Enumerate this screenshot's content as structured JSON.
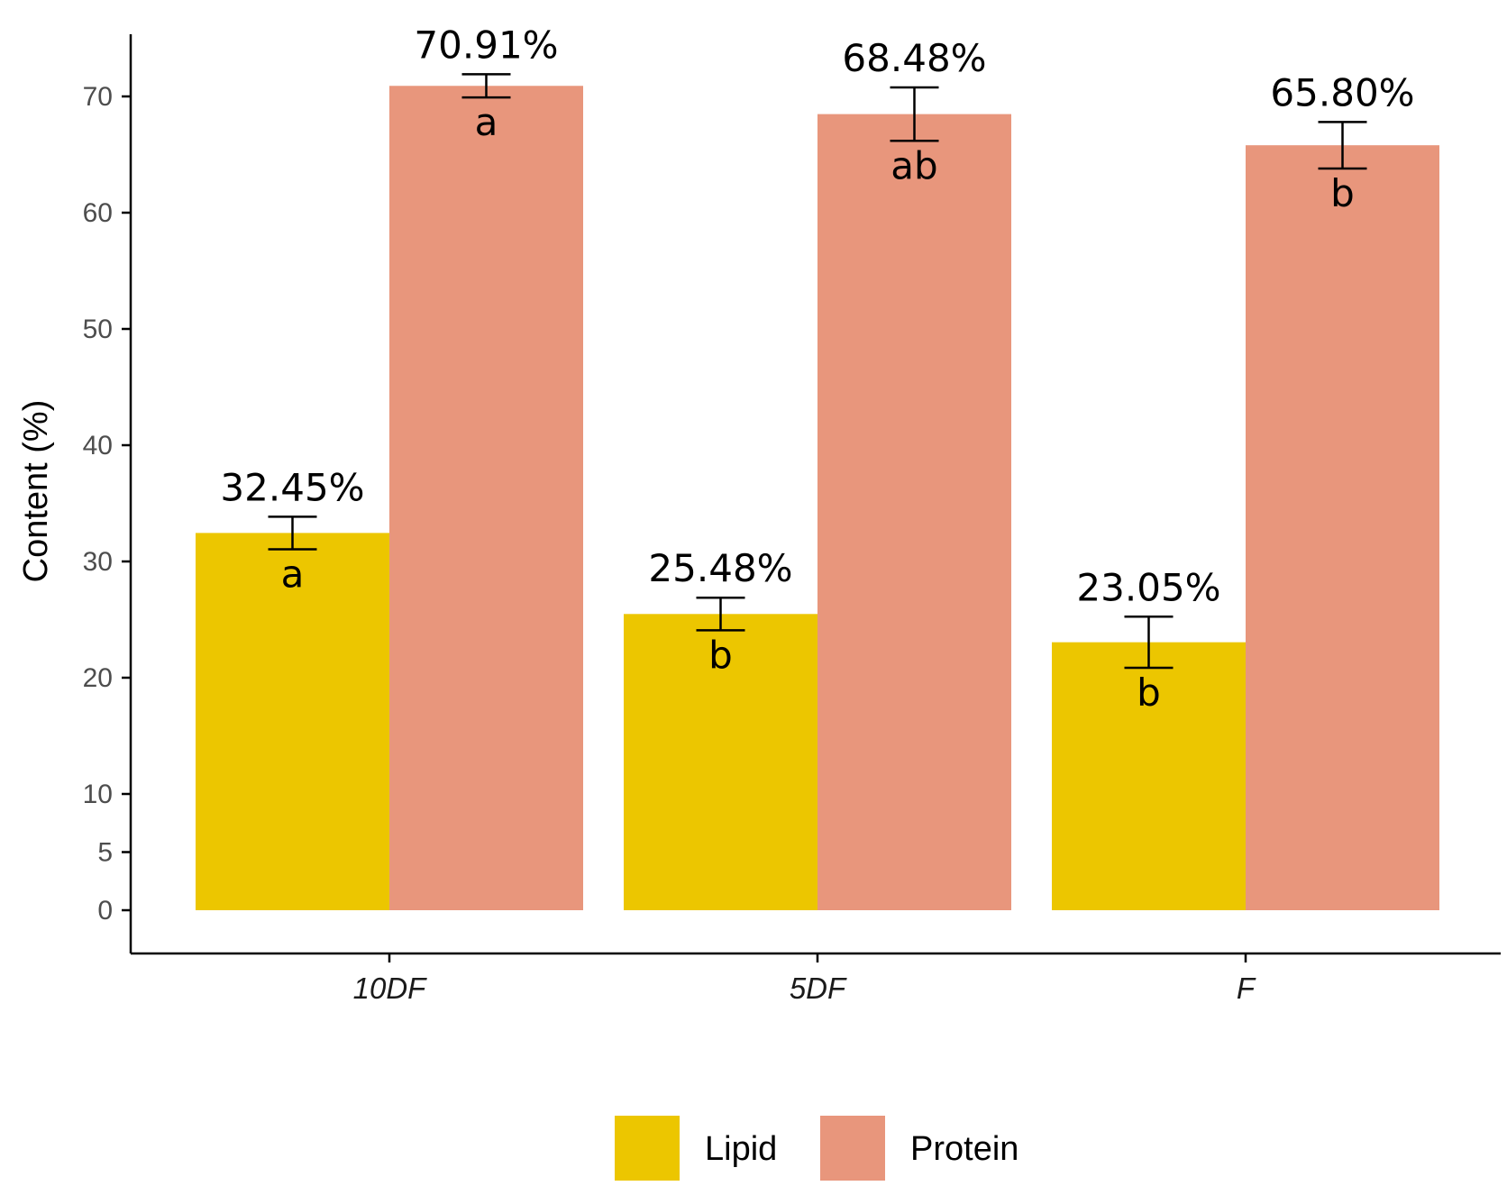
{
  "chart_data": {
    "type": "bar",
    "title": "",
    "xlabel": "",
    "ylabel": "Content (%)",
    "ylim": [
      0,
      73
    ],
    "yticks": [
      0,
      5,
      10,
      20,
      30,
      40,
      50,
      60,
      70
    ],
    "categories": [
      "10DF",
      "5DF",
      "F"
    ],
    "series": [
      {
        "name": "Lipid",
        "color": "#ecc600",
        "values": [
          32.45,
          25.48,
          23.05
        ],
        "errors": [
          1.4,
          1.4,
          2.2
        ],
        "value_labels": [
          "32.45%",
          "25.48%",
          "23.05%"
        ],
        "significance": [
          "a",
          "b",
          "b"
        ]
      },
      {
        "name": "Protein",
        "color": "#e8967c",
        "values": [
          70.91,
          68.48,
          65.8
        ],
        "errors": [
          1.0,
          2.3,
          2.0
        ],
        "value_labels": [
          "70.91%",
          "68.48%",
          "65.80%"
        ],
        "significance": [
          "a",
          "ab",
          "b"
        ]
      }
    ],
    "legend": {
      "position": "bottom",
      "entries": [
        "Lipid",
        "Protein"
      ]
    },
    "grid": false
  }
}
